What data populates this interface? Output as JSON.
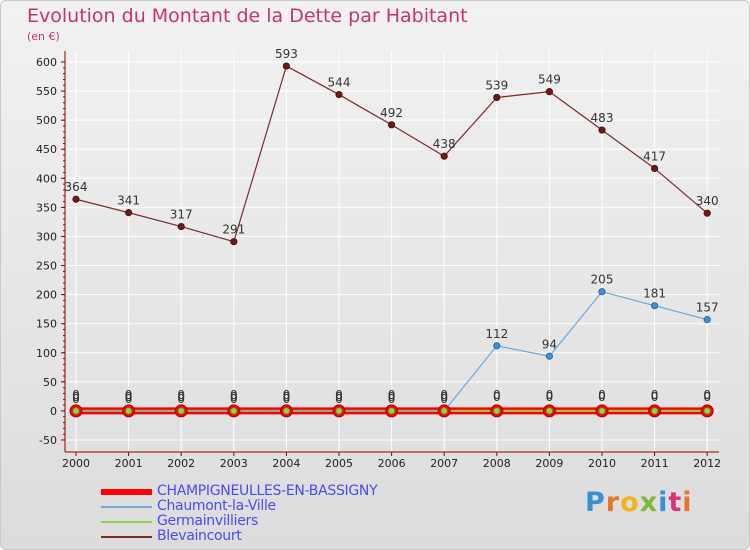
{
  "title": "Evolution du Montant de la Dette par Habitant",
  "unit_label": "(en €)",
  "colors": {
    "title": "#c8336d",
    "axis": "#8b0000",
    "legend_text": "#4a4af0",
    "grid": "#ffffff"
  },
  "chart_data": {
    "type": "line",
    "title": "Evolution du Montant de la Dette par Habitant",
    "xlabel": "",
    "ylabel": "(en €)",
    "ylim": [
      -50,
      600
    ],
    "yticks": [
      -50,
      0,
      50,
      100,
      150,
      200,
      250,
      300,
      350,
      400,
      450,
      500,
      550,
      600
    ],
    "grid": true,
    "legend_position": "bottom-left",
    "x": [
      "2000",
      "2001",
      "2002",
      "2003",
      "2004",
      "2005",
      "2006",
      "2007",
      "2008",
      "2009",
      "2010",
      "2011",
      "2012"
    ],
    "series": [
      {
        "name": "CHAMPIGNEULLES-EN-BASSIGNY",
        "color": "#ff0000",
        "values": [
          0,
          0,
          0,
          0,
          0,
          0,
          0,
          0,
          0,
          0,
          0,
          0,
          0
        ],
        "labels": [
          "0",
          "0",
          "0",
          "0",
          "0",
          "0",
          "0",
          "0",
          "0",
          "0",
          "0",
          "0",
          "0"
        ]
      },
      {
        "name": "Chaumont-la-Ville",
        "color": "#6fa8dc",
        "values": [
          0,
          0,
          0,
          0,
          0,
          0,
          0,
          0,
          112,
          94,
          205,
          181,
          157
        ],
        "labels": [
          "0",
          "0",
          "0",
          "0",
          "0",
          "0",
          "0",
          "0",
          "112",
          "94",
          "205",
          "181",
          "157"
        ]
      },
      {
        "name": "Germainvilliers",
        "color": "#92d050",
        "values": [
          0,
          0,
          0,
          0,
          0,
          0,
          0,
          0,
          0,
          0,
          0,
          0,
          0
        ],
        "labels": [
          "0",
          "0",
          "0",
          "0",
          "0",
          "0",
          "0",
          "0",
          "0",
          "0",
          "0",
          "0",
          "0"
        ]
      },
      {
        "name": "Blevaincourt",
        "color": "#7b2a2a",
        "values": [
          364,
          341,
          317,
          291,
          593,
          544,
          492,
          438,
          539,
          549,
          483,
          417,
          340
        ],
        "labels": [
          "364",
          "341",
          "317",
          "291",
          "593",
          "544",
          "492",
          "438",
          "539",
          "549",
          "483",
          "417",
          "340"
        ]
      }
    ]
  },
  "legend": {
    "items": [
      {
        "label": "CHAMPIGNEULLES-EN-BASSIGNY",
        "color": "#ff0000"
      },
      {
        "label": "Chaumont-la-Ville",
        "color": "#6fa8dc"
      },
      {
        "label": "Germainvilliers",
        "color": "#92d050"
      },
      {
        "label": "Blevaincourt",
        "color": "#7b2a2a"
      }
    ]
  },
  "logo": {
    "text": "Proxiti",
    "letters": [
      {
        "ch": "P",
        "color": "#3a8fd1"
      },
      {
        "ch": "r",
        "color": "#e8742a"
      },
      {
        "ch": "o",
        "color": "#f2b21c"
      },
      {
        "ch": "x",
        "color": "#7fb83a"
      },
      {
        "ch": "i",
        "color": "#3a8fd1"
      },
      {
        "ch": "t",
        "color": "#d9347a"
      },
      {
        "ch": "i",
        "color": "#e8742a"
      }
    ]
  }
}
